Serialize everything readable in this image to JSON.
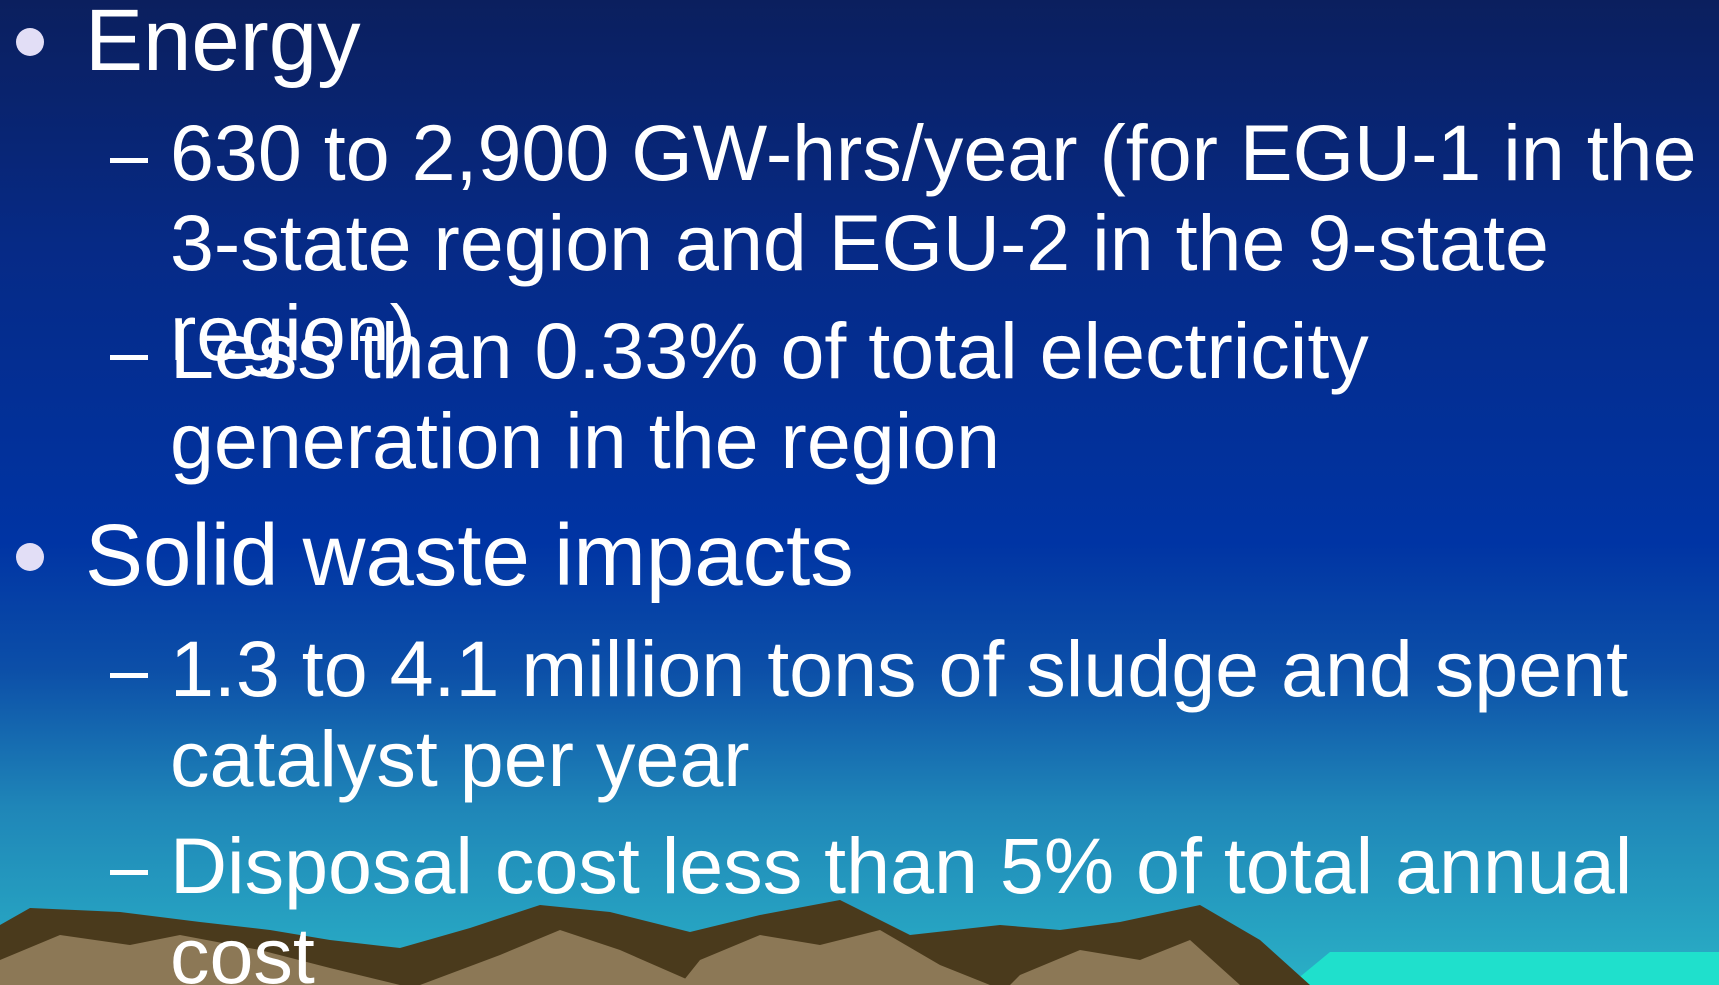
{
  "bullets": [
    {
      "text": "Energy",
      "items": [
        "630 to 2,900 GW-hrs/year (for EGU-1 in the 3-state region and EGU-2 in the 9-state region)",
        "Less than 0.33% of total electricity generation in the region"
      ]
    },
    {
      "text": "Solid waste impacts",
      "items": [
        "1.3 to 4.1 million tons of sludge and spent catalyst per year",
        "Disposal cost less than 5% of total annual cost"
      ]
    }
  ]
}
